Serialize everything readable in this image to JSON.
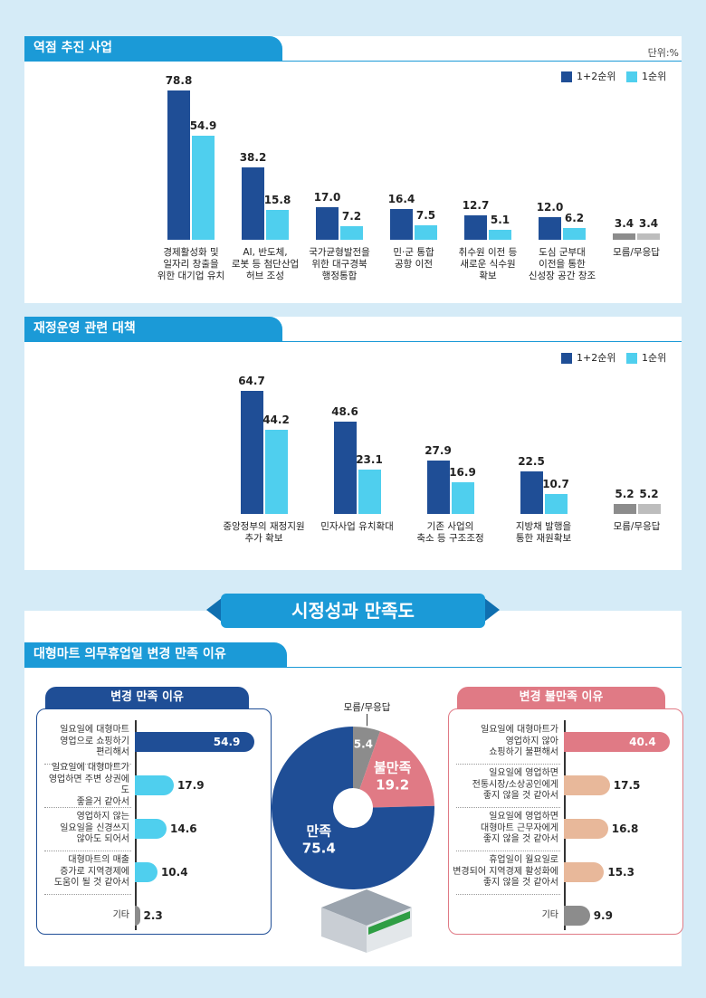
{
  "section_title": "시정성과 만족도",
  "subsection_title": "대형마트 의무휴업일 변경 만족 이유",
  "chart_data": [
    {
      "type": "bar",
      "title": "역점 추진 사업",
      "unit": "단위:%",
      "categories": [
        "경제활성화 및\n일자리 창출을\n위한 대기업 유치",
        "AI, 반도체,\n로봇 등 첨단산업\n허브 조성",
        "국가균형발전을\n위한 대구경북\n행정통합",
        "민·군 통합\n공항 이전",
        "취수원 이전 등\n새로운 식수원\n확보",
        "도심 군부대\n이전을 통한\n신성장 공간 창조",
        "모름/무응답"
      ],
      "series": [
        {
          "name": "1+2순위",
          "color": "#1f4e96",
          "colors": [
            "#1f4e96",
            "#1f4e96",
            "#1f4e96",
            "#1f4e96",
            "#1f4e96",
            "#1f4e96",
            "#8c8c8c"
          ],
          "values": [
            78.8,
            38.2,
            17.0,
            16.4,
            12.7,
            12.0,
            3.4
          ],
          "value_labels": [
            "78.8",
            "38.2",
            "17.0",
            "16.4",
            "12.7",
            "12.0",
            "3.4"
          ]
        },
        {
          "name": "1순위",
          "color": "#4fcfee",
          "colors": [
            "#4fcfee",
            "#4fcfee",
            "#4fcfee",
            "#4fcfee",
            "#4fcfee",
            "#4fcfee",
            "#bdbdbd"
          ],
          "values": [
            54.9,
            15.8,
            7.2,
            7.5,
            5.1,
            6.2,
            3.4
          ]
        }
      ]
    },
    {
      "type": "bar",
      "title": "재정운영 관련 대책",
      "categories": [
        "중앙정부의 재정지원\n추가 확보",
        "민자사업 유치확대",
        "기존 사업의\n축소 등 구조조정",
        "지방채 발행을\n통한 재원확보",
        "모름/무응답"
      ],
      "series": [
        {
          "name": "1+2순위",
          "color": "#1f4e96",
          "colors": [
            "#1f4e96",
            "#1f4e96",
            "#1f4e96",
            "#1f4e96",
            "#8c8c8c"
          ],
          "values": [
            64.7,
            48.6,
            27.9,
            22.5,
            5.2
          ]
        },
        {
          "name": "1순위",
          "color": "#4fcfee",
          "colors": [
            "#4fcfee",
            "#4fcfee",
            "#4fcfee",
            "#4fcfee",
            "#bdbdbd"
          ],
          "values": [
            44.2,
            23.1,
            16.9,
            10.7,
            5.2
          ]
        }
      ]
    },
    {
      "type": "hbar",
      "title": "변경 만족 이유",
      "color": "#1f4e96",
      "categories": [
        "일요일에 대형마트\n영업으로 쇼핑하기\n편리해서",
        "일요일에 대형마트가\n영업하면 주변 상권에도\n좋을거 같아서",
        "영업하지 않는\n일요일을 신경쓰지\n않아도 되어서",
        "대형마트의 매출\n증가로 지역경제에\n도움이 될 것 같아서",
        "기타"
      ],
      "values": [
        54.9,
        17.9,
        14.6,
        10.4,
        2.3
      ],
      "colors": [
        "#1f4e96",
        "#4fcfee",
        "#4fcfee",
        "#4fcfee",
        "#8c8c8c"
      ]
    },
    {
      "type": "pie",
      "categories": [
        "모름/무응답",
        "불만족",
        "만족"
      ],
      "values": [
        5.4,
        19.2,
        75.4
      ],
      "colors": [
        "#8c8c8c",
        "#e07a85",
        "#1f4e96"
      ]
    },
    {
      "type": "hbar",
      "title": "변경 불만족 이유",
      "color": "#e07a85",
      "categories": [
        "일요일에 대형마트가\n영업하지 않아\n쇼핑하기 불편해서",
        "일요일에 영업하면\n전통시장/소상공인에게\n좋지 않을 것 같아서",
        "일요일에 영업하면\n대형마트 근무자에게\n좋지 않을 것 같아서",
        "휴업일이 월요일로\n변경되어 지역경제 활성화에\n좋지 않을 것 같아서",
        "기타"
      ],
      "values": [
        40.4,
        17.5,
        16.8,
        15.3,
        9.9
      ],
      "colors": [
        "#e07a85",
        "#e8b89a",
        "#e8b89a",
        "#e8b89a",
        "#8c8c8c"
      ]
    }
  ]
}
